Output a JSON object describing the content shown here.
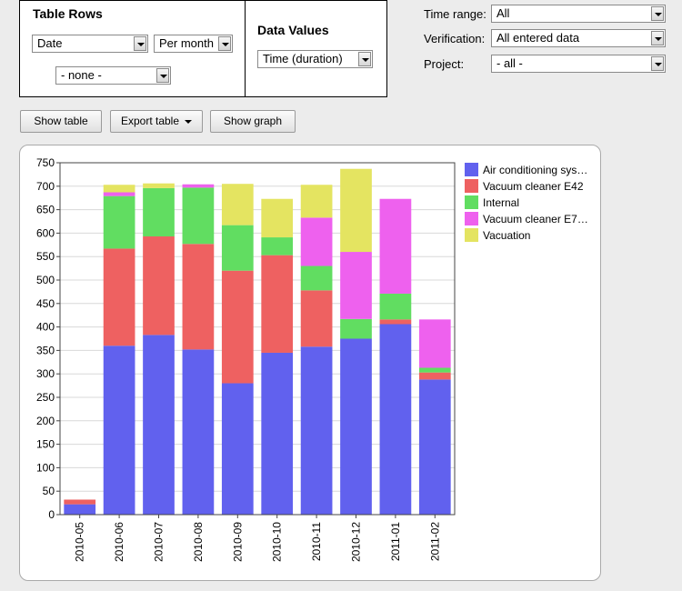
{
  "table_rows": {
    "title": "Table Rows",
    "row1": "Date",
    "row1_period": "Per month",
    "row2": "- none -"
  },
  "data_values": {
    "title": "Data Values",
    "value": "Time (duration)"
  },
  "filters": {
    "time_range_label": "Time range:",
    "time_range_value": "All",
    "verification_label": "Verification:",
    "verification_value": "All entered data",
    "project_label": "Project:",
    "project_value": "- all -"
  },
  "buttons": {
    "show_table": "Show table",
    "export_table": "Export table",
    "show_graph": "Show graph"
  },
  "chart_data": {
    "type": "bar",
    "stacked": true,
    "categories": [
      "2010-05",
      "2010-06",
      "2010-07",
      "2010-08",
      "2010-09",
      "2010-10",
      "2010-11",
      "2010-12",
      "2011-01",
      "2011-02"
    ],
    "series": [
      {
        "name": "Air conditioning sys…",
        "color": "#6161ee",
        "values": [
          22,
          360,
          383,
          352,
          280,
          345,
          358,
          375,
          406,
          288
        ]
      },
      {
        "name": "Vacuum cleaner E42",
        "color": "#ee6161",
        "values": [
          10,
          207,
          210,
          225,
          240,
          208,
          120,
          0,
          10,
          15
        ]
      },
      {
        "name": "Internal",
        "color": "#61dd61",
        "values": [
          0,
          112,
          103,
          120,
          97,
          38,
          52,
          42,
          55,
          10
        ]
      },
      {
        "name": "Vacuum cleaner E7…",
        "color": "#ee61ee",
        "values": [
          0,
          8,
          0,
          7,
          0,
          0,
          103,
          143,
          202,
          103
        ]
      },
      {
        "name": "Vacuation",
        "color": "#e4e461",
        "values": [
          0,
          16,
          10,
          0,
          88,
          82,
          70,
          177,
          0,
          0
        ]
      }
    ],
    "ylim": [
      0,
      750
    ],
    "yticks": [
      0,
      50,
      100,
      150,
      200,
      250,
      300,
      350,
      400,
      450,
      500,
      550,
      600,
      650,
      700,
      750
    ],
    "grid": true,
    "legend_position": "right"
  }
}
